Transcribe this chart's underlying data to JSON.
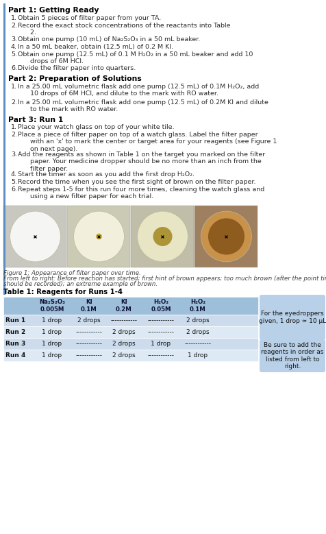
{
  "bg_color": "#ffffff",
  "text_color": "#2c2c2c",
  "bold_color": "#000000",
  "left_bar_color": "#5b8ec4",
  "table_header_bg": "#9dbfda",
  "table_row_bg1": "#ccdcec",
  "table_row_bg2": "#ddeaf5",
  "note_box_bg": "#b8d0e8",
  "figure_caption_color": "#444444",
  "part1_header": "Part 1: Getting Ready",
  "part2_header": "Part 2: Preparation of Solutions",
  "part3_header": "Part 3: Run 1",
  "part1_items": [
    [
      "1.",
      "Obtain 5 pieces of filter paper from your TA."
    ],
    [
      "2.",
      "Record the exact stock concentrations of the reactants into Table\n      2."
    ],
    [
      "3.",
      "Obtain one pump (10 mL) of Na₂S₂O₃ in a 50 mL beaker."
    ],
    [
      "4.",
      "In a 50 mL beaker, obtain (12.5 mL) of 0.2 M KI."
    ],
    [
      "5.",
      "Obtain one pump (12.5 mL) of 0.1 M H₂O₂ in a 50 mL beaker and add 10\n      drops of 6M HCl."
    ],
    [
      "6.",
      "Divide the filter paper into quarters."
    ]
  ],
  "part2_items": [
    [
      "1.",
      "In a 25.00 mL volumetric flask add one pump (12.5 mL) of 0.1M H₂O₂, add\n      10 drops of 6M HCl, and dilute to the mark with RO water."
    ],
    [
      "2.",
      "In a 25.00 mL volumetric flask add one pump (12.5 mL) of 0.2M KI and dilute\n      to the mark with RO water."
    ]
  ],
  "part3_items": [
    [
      "1.",
      "Place your watch glass on top of your white tile."
    ],
    [
      "2.",
      "Place a piece of filter paper on top of a watch glass. Label the filter paper\n      with an 'x' to mark the center or target area for your reagents (see Figure 1\n      on next page)."
    ],
    [
      "3.",
      "Add the reagents as shown in Table 1 on the target you marked on the filter\n      paper. Your medicine dropper should be no more than an inch from the\n      filter paper."
    ],
    [
      "4.",
      "Start the timer as soon as you add the first drop H₂O₂."
    ],
    [
      "5.",
      "Record the time when you see the first sight of brown on the filter paper."
    ],
    [
      "6.",
      "Repeat steps 1-5 for this run four more times, cleaning the watch glass and\n      using a new filter paper for each trial."
    ]
  ],
  "figure_caption_line1": "Figure 1: Appearance of filter paper over time.",
  "figure_caption_line2": "From left to right: Before reaction has started; first hint of brown appears; too much brown (after the point time",
  "figure_caption_line3": "should be recorded); an extreme example of brown.",
  "table_title": "Table 1: Reagents for Runs 1-4",
  "col_headers": [
    "Na₂S₂O₃\n0.005M",
    "KI\n0.1M",
    "KI\n0.2M",
    "H₂O₂\n0.05M",
    "H₂O₂\n0.1M"
  ],
  "table_rows": [
    [
      "Run 1",
      "1 drop",
      "2 drops",
      "------------",
      "------------",
      "2 drops"
    ],
    [
      "Run 2",
      "1 drop",
      "------------",
      "2 drops",
      "------------",
      "2 drops"
    ],
    [
      "Run 3",
      "1 drop",
      "------------",
      "2 drops",
      "1 drop",
      "------------"
    ],
    [
      "Run 4",
      "1 drop",
      "------------",
      "2 drops",
      "------------",
      "1 drop"
    ]
  ],
  "note1_text": "For the eyedroppers\ngiven, 1 drop ≈ 10 μL",
  "note2_text": "Be sure to add the\nreagents in order as\nlisted from left to\nright.",
  "panel_bg_colors": [
    "#c8c8c0",
    "#cbcbb5",
    "#c0bda8",
    "#9e8060"
  ],
  "circle_colors": [
    "#f5f5f3",
    "#f2efdc",
    "#e8e5c5",
    "#c9924a"
  ],
  "spot_colors": [
    "none",
    "#b8920a",
    "#9a7a08",
    "#7a4a10"
  ],
  "spot_radii": [
    0,
    0.12,
    0.38,
    0.72
  ]
}
